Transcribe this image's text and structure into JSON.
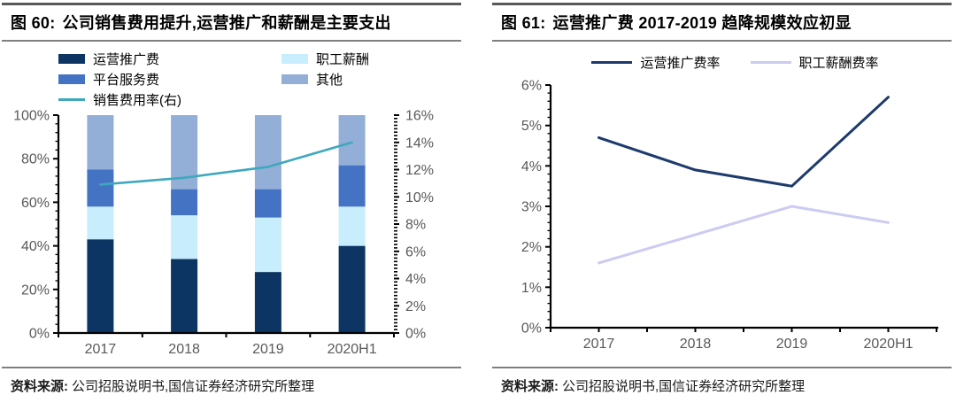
{
  "panels": [
    {
      "figure_label": "图 60:",
      "title": "公司销售费用提升,运营推广和薪酬是主要支出",
      "source_label": "资料来源:",
      "source_text": "公司招股说明书,国信证券经济研究所整理"
    },
    {
      "figure_label": "图 61:",
      "title": "运营推广费 2017-2019 趋降规模效应初显",
      "source_label": "资料来源:",
      "source_text": "公司招股说明书,国信证券经济研究所整理"
    }
  ],
  "colors": {
    "navy_bar": "#0D3563",
    "pale_cyan": "#C8EDFC",
    "medium_blue": "#4573C4",
    "gray_blue": "#93AFD7",
    "teal_line": "#3FA8BE",
    "navy_line": "#1C3A6B",
    "lavender_line": "#CCCBF2",
    "axis_text": "#595959",
    "axis_line": "#000000"
  },
  "chart_data": [
    {
      "type": "bar",
      "subtype": "stacked-percent-with-line-overlay",
      "legend_layout": "grid",
      "grid": false,
      "legend_position": "top",
      "categories": [
        "2017",
        "2018",
        "2019",
        "2020H1"
      ],
      "series": [
        {
          "name": "运营推广费",
          "type": "bar",
          "color": "#0D3563",
          "values": [
            43,
            34,
            28,
            40
          ]
        },
        {
          "name": "职工薪酬",
          "type": "bar",
          "color": "#C8EDFC",
          "values": [
            15,
            20,
            25,
            18
          ]
        },
        {
          "name": "平台服务费",
          "type": "bar",
          "color": "#4573C4",
          "values": [
            17,
            12,
            13,
            19
          ]
        },
        {
          "name": "其他",
          "type": "bar",
          "color": "#93AFD7",
          "values": [
            25,
            34,
            34,
            23
          ]
        },
        {
          "name": "销售费用率(右)",
          "type": "line",
          "axis": "right",
          "color": "#3FA8BE",
          "values": [
            10.9,
            11.4,
            12.2,
            14.0
          ]
        }
      ],
      "left_axis": {
        "min": 0,
        "max": 100,
        "step": 20,
        "minor": 4,
        "format": "percent"
      },
      "right_axis": {
        "min": 0,
        "max": 16,
        "step": 2,
        "minor": 0.25,
        "format": "percent"
      }
    },
    {
      "type": "line",
      "legend_layout": "row",
      "grid": false,
      "legend_position": "top",
      "categories": [
        "2017",
        "2018",
        "2019",
        "2020H1"
      ],
      "series": [
        {
          "name": "运营推广费率",
          "type": "line",
          "color": "#1C3A6B",
          "values": [
            4.7,
            3.9,
            3.5,
            5.7
          ]
        },
        {
          "name": "职工薪酬费率",
          "type": "line",
          "color": "#CCCBF2",
          "values": [
            1.6,
            2.3,
            3.0,
            2.6
          ]
        }
      ],
      "left_axis": {
        "min": 0,
        "max": 6,
        "step": 1,
        "minor": 0.2,
        "format": "percent"
      }
    }
  ]
}
